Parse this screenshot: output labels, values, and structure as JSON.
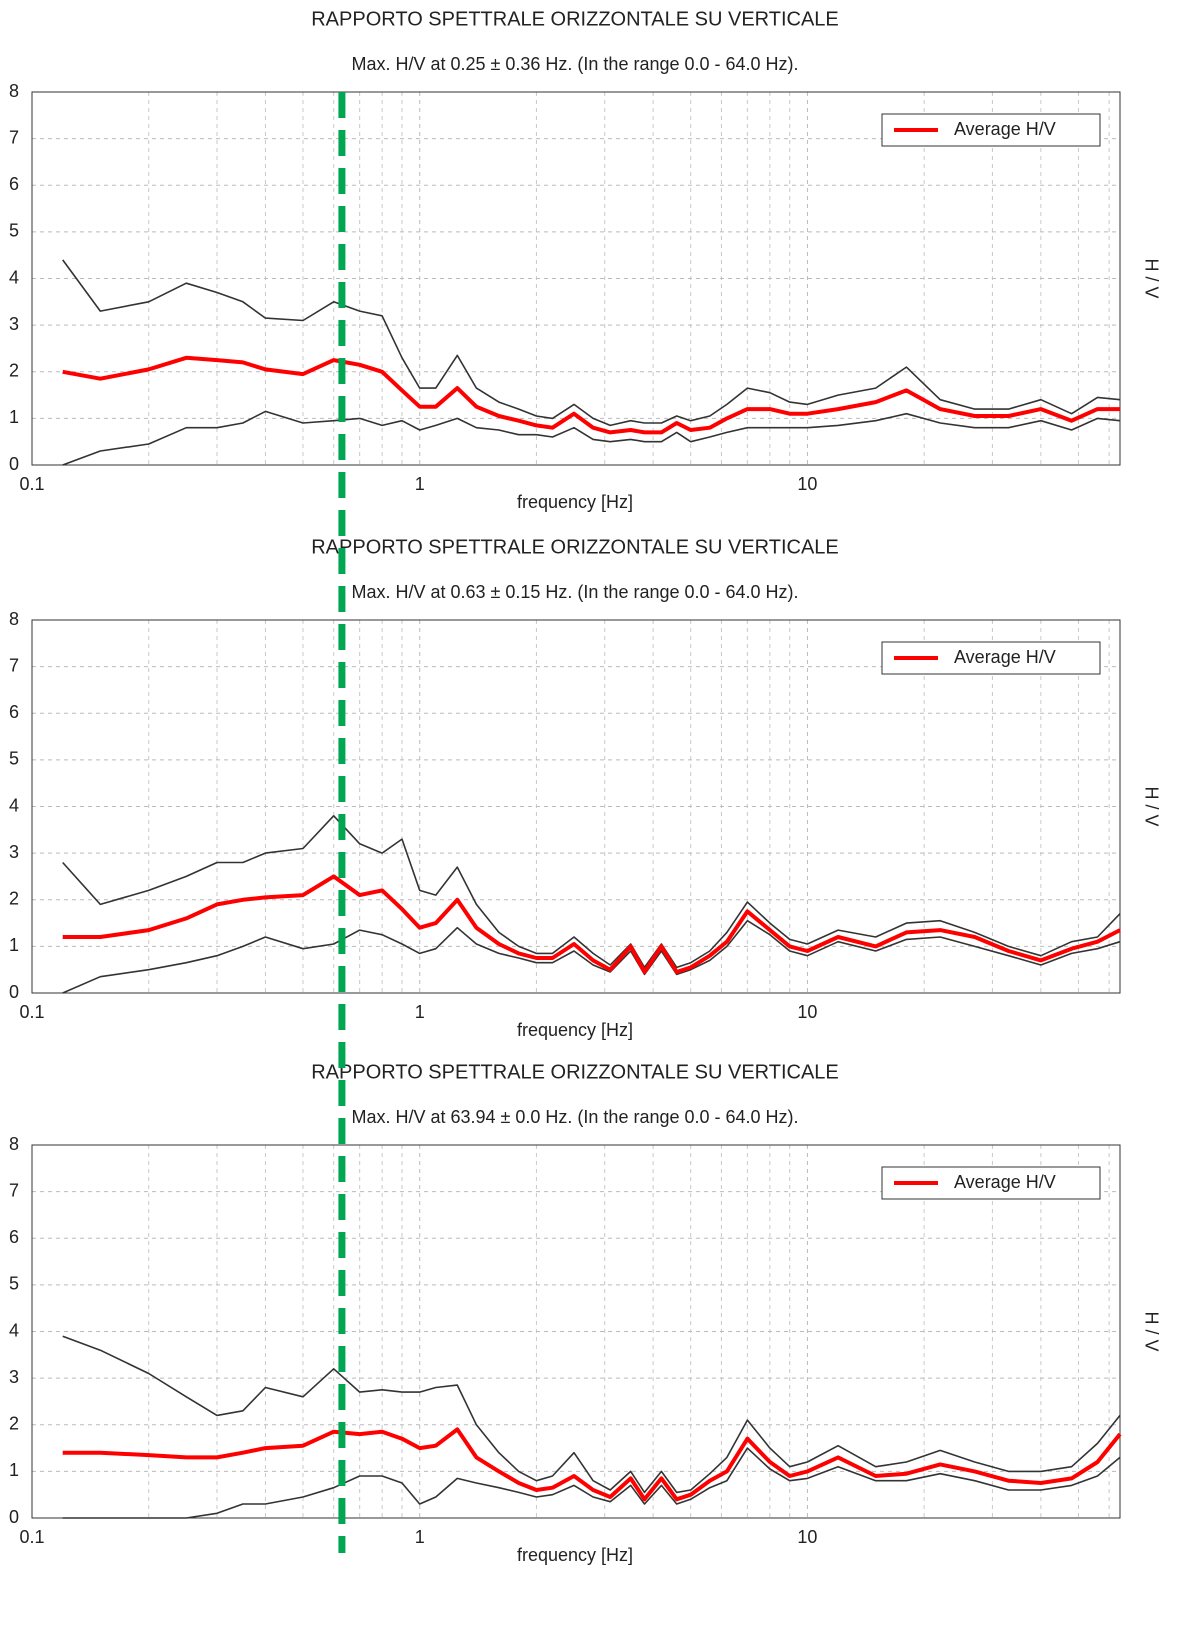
{
  "marker": {
    "x": 0.63,
    "color": "#00a651"
  },
  "chart_data": [
    {
      "type": "line",
      "title": "RAPPORTO SPETTRALE ORIZZONTALE SU VERTICALE",
      "subtitle": "Max. H/V at 0.25 ± 0.36 Hz. (In the range 0.0 - 64.0 Hz).",
      "xlabel": "frequency [Hz]",
      "ylabel": "H / V",
      "xscale": "log",
      "grid": true,
      "legend": "upper right",
      "xlim": [
        0.1,
        64
      ],
      "xticks": [
        0.1,
        1,
        10
      ],
      "ylim": [
        0,
        8
      ],
      "yticks": [
        0,
        1,
        2,
        3,
        4,
        5,
        6,
        7,
        8
      ],
      "x": [
        0.12,
        0.15,
        0.2,
        0.25,
        0.3,
        0.35,
        0.4,
        0.5,
        0.6,
        0.7,
        0.8,
        0.9,
        1.0,
        1.1,
        1.25,
        1.4,
        1.6,
        1.8,
        2.0,
        2.2,
        2.5,
        2.8,
        3.1,
        3.5,
        3.8,
        4.2,
        4.6,
        5.0,
        5.6,
        6.2,
        7.0,
        8.0,
        9.0,
        10,
        12,
        15,
        18,
        22,
        27,
        33,
        40,
        48,
        56,
        64
      ],
      "series": [
        {
          "name": "Average H/V",
          "color": "#ff0000",
          "values": [
            2.0,
            1.85,
            2.05,
            2.3,
            2.25,
            2.2,
            2.05,
            1.95,
            2.25,
            2.15,
            2.0,
            1.6,
            1.25,
            1.25,
            1.65,
            1.25,
            1.05,
            0.95,
            0.85,
            0.8,
            1.1,
            0.8,
            0.7,
            0.75,
            0.7,
            0.7,
            0.9,
            0.75,
            0.8,
            1.0,
            1.2,
            1.2,
            1.1,
            1.1,
            1.2,
            1.35,
            1.6,
            1.2,
            1.05,
            1.05,
            1.2,
            0.95,
            1.2,
            1.2
          ]
        },
        {
          "color": "#333333",
          "values": [
            4.4,
            3.3,
            3.5,
            3.9,
            3.7,
            3.5,
            3.15,
            3.1,
            3.5,
            3.3,
            3.2,
            2.3,
            1.65,
            1.65,
            2.35,
            1.65,
            1.35,
            1.2,
            1.05,
            1.0,
            1.3,
            1.0,
            0.85,
            0.95,
            0.9,
            0.9,
            1.05,
            0.95,
            1.05,
            1.3,
            1.65,
            1.55,
            1.35,
            1.3,
            1.5,
            1.65,
            2.1,
            1.4,
            1.2,
            1.2,
            1.4,
            1.1,
            1.45,
            1.4
          ]
        },
        {
          "color": "#333333",
          "values": [
            0.0,
            0.3,
            0.45,
            0.8,
            0.8,
            0.9,
            1.15,
            0.9,
            0.95,
            1.0,
            0.85,
            0.95,
            0.75,
            0.85,
            1.0,
            0.8,
            0.75,
            0.65,
            0.65,
            0.6,
            0.8,
            0.55,
            0.5,
            0.55,
            0.5,
            0.5,
            0.7,
            0.5,
            0.6,
            0.7,
            0.8,
            0.8,
            0.8,
            0.8,
            0.85,
            0.95,
            1.1,
            0.9,
            0.8,
            0.8,
            0.95,
            0.75,
            1.0,
            0.95
          ]
        }
      ]
    },
    {
      "type": "line",
      "title": "RAPPORTO SPETTRALE ORIZZONTALE SU VERTICALE",
      "subtitle": "Max. H/V at 0.63 ± 0.15 Hz. (In the range 0.0 - 64.0 Hz).",
      "xlabel": "frequency [Hz]",
      "ylabel": "H / V",
      "xscale": "log",
      "grid": true,
      "legend": "upper right",
      "xlim": [
        0.1,
        64
      ],
      "xticks": [
        0.1,
        1,
        10
      ],
      "ylim": [
        0,
        8
      ],
      "yticks": [
        0,
        1,
        2,
        3,
        4,
        5,
        6,
        7,
        8
      ],
      "x": [
        0.12,
        0.15,
        0.2,
        0.25,
        0.3,
        0.35,
        0.4,
        0.5,
        0.6,
        0.7,
        0.8,
        0.9,
        1.0,
        1.1,
        1.25,
        1.4,
        1.6,
        1.8,
        2.0,
        2.2,
        2.5,
        2.8,
        3.1,
        3.5,
        3.8,
        4.2,
        4.6,
        5.0,
        5.6,
        6.2,
        7.0,
        8.0,
        9.0,
        10,
        12,
        15,
        18,
        22,
        27,
        33,
        40,
        48,
        56,
        64
      ],
      "series": [
        {
          "name": "Average H/V",
          "color": "#ff0000",
          "values": [
            1.2,
            1.2,
            1.35,
            1.6,
            1.9,
            2.0,
            2.05,
            2.1,
            2.5,
            2.1,
            2.2,
            1.8,
            1.4,
            1.5,
            2.0,
            1.4,
            1.05,
            0.85,
            0.75,
            0.75,
            1.05,
            0.7,
            0.5,
            1.0,
            0.45,
            1.0,
            0.45,
            0.55,
            0.8,
            1.1,
            1.75,
            1.35,
            1.0,
            0.9,
            1.2,
            1.0,
            1.3,
            1.35,
            1.2,
            0.9,
            0.7,
            0.95,
            1.1,
            1.35
          ]
        },
        {
          "color": "#333333",
          "values": [
            2.8,
            1.9,
            2.2,
            2.5,
            2.8,
            2.8,
            3.0,
            3.1,
            3.8,
            3.2,
            3.0,
            3.3,
            2.2,
            2.1,
            2.7,
            1.9,
            1.3,
            1.0,
            0.85,
            0.85,
            1.2,
            0.85,
            0.6,
            1.05,
            0.55,
            1.05,
            0.55,
            0.65,
            0.9,
            1.3,
            1.95,
            1.5,
            1.15,
            1.05,
            1.35,
            1.2,
            1.5,
            1.55,
            1.3,
            1.0,
            0.8,
            1.1,
            1.2,
            1.7
          ]
        },
        {
          "color": "#333333",
          "values": [
            0.0,
            0.35,
            0.5,
            0.65,
            0.8,
            1.0,
            1.2,
            0.95,
            1.05,
            1.35,
            1.25,
            1.05,
            0.85,
            0.95,
            1.4,
            1.05,
            0.85,
            0.75,
            0.65,
            0.65,
            0.9,
            0.6,
            0.45,
            0.9,
            0.4,
            0.9,
            0.4,
            0.5,
            0.7,
            1.0,
            1.55,
            1.25,
            0.9,
            0.8,
            1.1,
            0.9,
            1.15,
            1.2,
            1.0,
            0.8,
            0.6,
            0.85,
            0.95,
            1.1
          ]
        }
      ]
    },
    {
      "type": "line",
      "title": "RAPPORTO SPETTRALE ORIZZONTALE SU VERTICALE",
      "subtitle": "Max. H/V at 63.94 ± 0.0 Hz. (In the range 0.0 - 64.0 Hz).",
      "xlabel": "frequency [Hz]",
      "ylabel": "H / V",
      "xscale": "log",
      "grid": true,
      "legend": "upper right",
      "xlim": [
        0.1,
        64
      ],
      "xticks": [
        0.1,
        1,
        10
      ],
      "ylim": [
        0,
        8
      ],
      "yticks": [
        0,
        1,
        2,
        3,
        4,
        5,
        6,
        7,
        8
      ],
      "x": [
        0.12,
        0.15,
        0.2,
        0.25,
        0.3,
        0.35,
        0.4,
        0.5,
        0.6,
        0.7,
        0.8,
        0.9,
        1.0,
        1.1,
        1.25,
        1.4,
        1.6,
        1.8,
        2.0,
        2.2,
        2.5,
        2.8,
        3.1,
        3.5,
        3.8,
        4.2,
        4.6,
        5.0,
        5.6,
        6.2,
        7.0,
        8.0,
        9.0,
        10,
        12,
        15,
        18,
        22,
        27,
        33,
        40,
        48,
        56,
        64
      ],
      "series": [
        {
          "name": "Average H/V",
          "color": "#ff0000",
          "values": [
            1.4,
            1.4,
            1.35,
            1.3,
            1.3,
            1.4,
            1.5,
            1.55,
            1.85,
            1.8,
            1.85,
            1.7,
            1.5,
            1.55,
            1.9,
            1.3,
            1.0,
            0.75,
            0.6,
            0.65,
            0.9,
            0.6,
            0.45,
            0.85,
            0.4,
            0.85,
            0.4,
            0.5,
            0.8,
            1.0,
            1.7,
            1.2,
            0.9,
            1.0,
            1.3,
            0.9,
            0.95,
            1.15,
            1.0,
            0.8,
            0.75,
            0.85,
            1.2,
            1.8
          ]
        },
        {
          "color": "#333333",
          "values": [
            3.9,
            3.6,
            3.1,
            2.6,
            2.2,
            2.3,
            2.8,
            2.6,
            3.2,
            2.7,
            2.75,
            2.7,
            2.7,
            2.8,
            2.85,
            2.0,
            1.4,
            1.0,
            0.8,
            0.9,
            1.4,
            0.8,
            0.6,
            1.0,
            0.55,
            1.0,
            0.55,
            0.6,
            0.95,
            1.3,
            2.1,
            1.5,
            1.1,
            1.2,
            1.55,
            1.1,
            1.2,
            1.45,
            1.2,
            1.0,
            1.0,
            1.1,
            1.6,
            2.2
          ]
        },
        {
          "color": "#333333",
          "values": [
            0,
            0,
            0,
            0,
            0.1,
            0.3,
            0.3,
            0.45,
            0.65,
            0.9,
            0.9,
            0.75,
            0.3,
            0.45,
            0.85,
            0.75,
            0.65,
            0.55,
            0.45,
            0.5,
            0.7,
            0.45,
            0.35,
            0.7,
            0.3,
            0.7,
            0.3,
            0.4,
            0.65,
            0.8,
            1.5,
            1.05,
            0.8,
            0.85,
            1.1,
            0.8,
            0.8,
            0.95,
            0.8,
            0.6,
            0.6,
            0.7,
            0.9,
            1.3
          ]
        }
      ]
    }
  ]
}
